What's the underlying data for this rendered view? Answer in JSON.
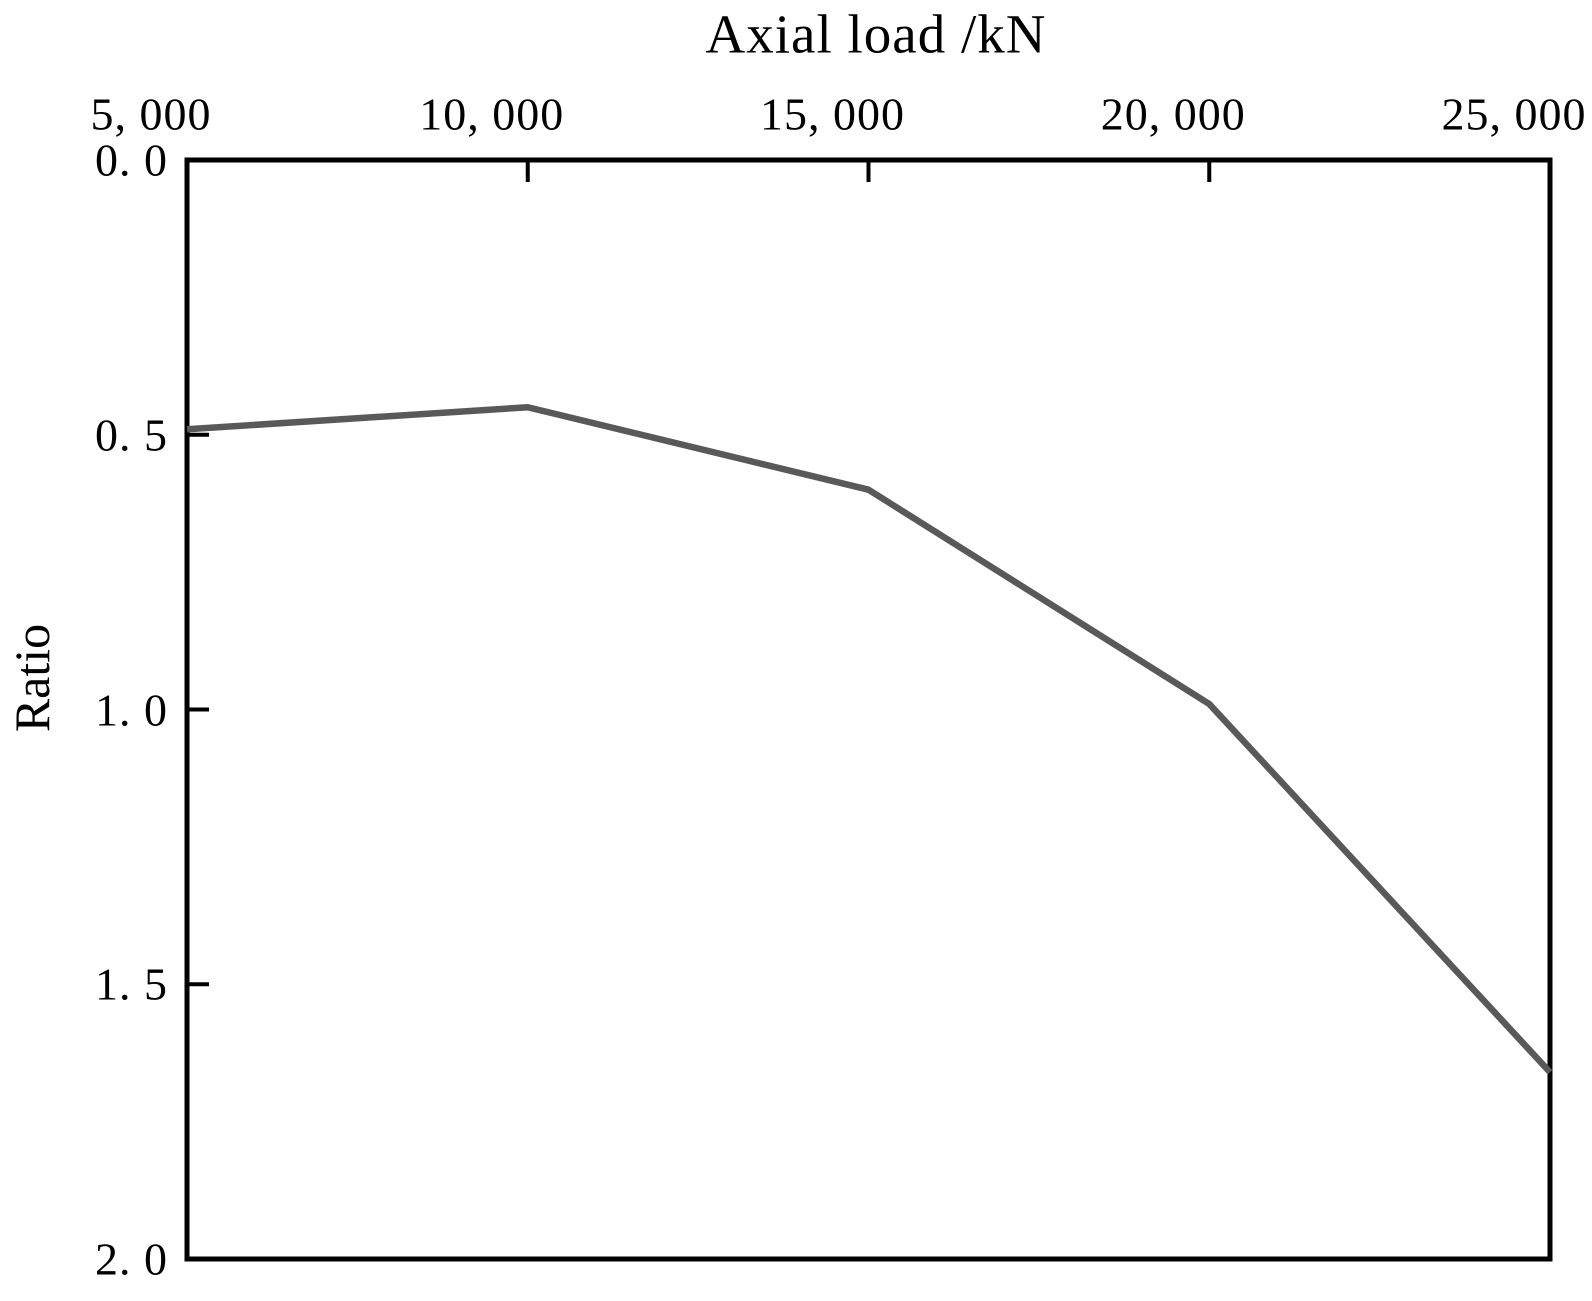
{
  "chart_data": {
    "type": "line",
    "title": "Axial load /kN",
    "xlabel": "Axial load /kN",
    "ylabel": "Ratio",
    "x_axis_position": "top",
    "y_axis_inverted": true,
    "xlim": [
      5000,
      25000
    ],
    "ylim": [
      0.0,
      2.0
    ],
    "x_ticks": [
      5000,
      10000,
      15000,
      20000,
      25000
    ],
    "x_tick_labels": [
      "5, 000",
      "10, 000",
      "15, 000",
      "20, 000",
      "25, 000"
    ],
    "y_ticks": [
      0.0,
      0.5,
      1.0,
      1.5,
      2.0
    ],
    "y_tick_labels": [
      "0. 0",
      "0. 5",
      "1. 0",
      "1. 5",
      "2. 0"
    ],
    "grid": false,
    "legend": "none",
    "series": [
      {
        "name": "Ratio",
        "x": [
          5000,
          10000,
          15000,
          20000,
          25000
        ],
        "y": [
          0.49,
          0.45,
          0.6,
          0.99,
          1.66
        ]
      }
    ],
    "colors": {
      "line": "#595959",
      "axis": "#000000",
      "text": "#000000",
      "background": "#ffffff"
    }
  }
}
